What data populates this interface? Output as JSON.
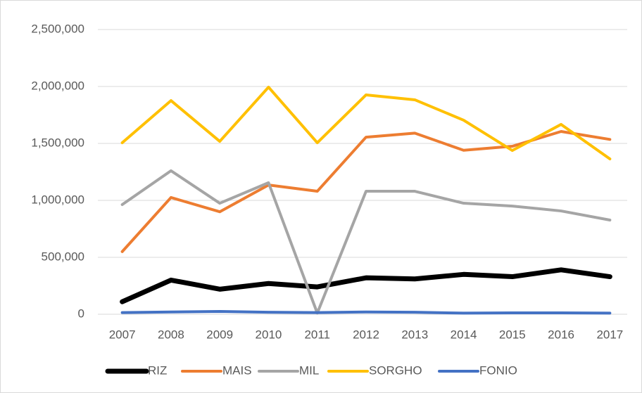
{
  "chart_data": {
    "type": "line",
    "categories": [
      "2007",
      "2008",
      "2009",
      "2010",
      "2011",
      "2012",
      "2013",
      "2014",
      "2015",
      "2016",
      "2017"
    ],
    "series": [
      {
        "name": "RIZ",
        "color": "#000000",
        "values": [
          110000,
          300000,
          220000,
          270000,
          240000,
          320000,
          310000,
          350000,
          330000,
          390000,
          330000
        ]
      },
      {
        "name": "MAIS",
        "color": "#ed7d31",
        "values": [
          550000,
          1025000,
          900000,
          1135000,
          1080000,
          1555000,
          1590000,
          1440000,
          1475000,
          1605000,
          1535000
        ]
      },
      {
        "name": "MIL",
        "color": "#a5a5a5",
        "values": [
          963000,
          1260000,
          975000,
          1155000,
          10000,
          1080000,
          1080000,
          975000,
          950000,
          907000,
          827000
        ]
      },
      {
        "name": "SORGHO",
        "color": "#ffc000",
        "values": [
          1506000,
          1876000,
          1518000,
          1994000,
          1506000,
          1926000,
          1883000,
          1704000,
          1438000,
          1667000,
          1364000
        ]
      },
      {
        "name": "FONIO",
        "color": "#4472c4",
        "values": [
          15000,
          20000,
          25000,
          18000,
          15000,
          20000,
          18000,
          10000,
          12000,
          12000,
          10000
        ]
      }
    ],
    "ylim": [
      0,
      2500000
    ],
    "yticks": [
      {
        "value": 0,
        "label": "0"
      },
      {
        "value": 500000,
        "label": "500,000"
      },
      {
        "value": 1000000,
        "label": "1,000,000"
      },
      {
        "value": 1500000,
        "label": "1,500,000"
      },
      {
        "value": 2000000,
        "label": "2,000,000"
      },
      {
        "value": 2500000,
        "label": "2,500,000"
      }
    ],
    "grid": true,
    "legend": "bottom"
  }
}
